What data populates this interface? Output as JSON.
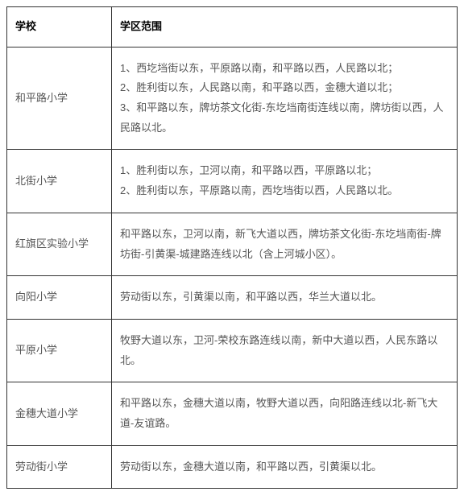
{
  "table": {
    "header": {
      "school": "学校",
      "district": "学区范围"
    },
    "rows": [
      {
        "school": "和平路小学",
        "lines": [
          "1、西圪垱街以东，平原路以南，和平路以西，人民路以北；",
          "2、胜利街以东，人民路以南，和平路以西，金穗大道以北；",
          "3、和平路以东，牌坊茶文化街-东圪垱南街连线以南，牌坊街以西，人民路以北。"
        ]
      },
      {
        "school": "北街小学",
        "lines": [
          "1、胜利街以东，卫河以南，和平路以西，平原路以北；",
          "2、胜利街以东，平原路以南，西圪垱街以西，人民路以北。"
        ]
      },
      {
        "school": "红旗区实验小学",
        "lines": [
          "和平路以东，卫河以南，新飞大道以西，牌坊茶文化街-东圪垱南街-牌坊街-引黄渠-城建路连线以北（含上河城小区）。"
        ]
      },
      {
        "school": "向阳小学",
        "lines": [
          "劳动街以东，引黄渠以南，和平路以西，华兰大道以北。"
        ]
      },
      {
        "school": "平原小学",
        "lines": [
          "牧野大道以东，卫河-荣校东路连线以南，新中大道以西，人民东路以北。"
        ]
      },
      {
        "school": "金穗大道小学",
        "lines": [
          "和平路以东，金穗大道以南，牧野大道以西，向阳路连线以北-新飞大道-友谊路。"
        ]
      },
      {
        "school": "劳动街小学",
        "lines": [
          "劳动街以东，金穗大道以南，和平路以西，引黄渠以北。"
        ]
      }
    ]
  },
  "styling": {
    "border_color": "#333333",
    "text_color": "#555555",
    "header_text_color": "#000000",
    "background_color": "#ffffff",
    "font_size": 13,
    "line_height": 1.9,
    "school_col_width": 130,
    "cell_padding_v": 14,
    "cell_padding_h": 10
  }
}
